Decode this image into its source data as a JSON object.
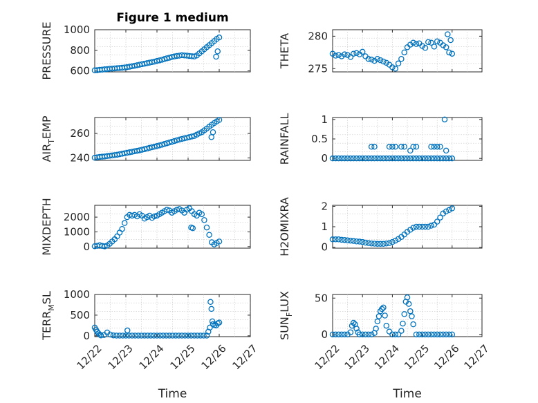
{
  "chart_data": [
    {
      "type": "scatter",
      "title": "Figure 1 medium",
      "ylabel": "PRESSURE",
      "ylabel_base": "",
      "ylabel_sub": "",
      "ylabel_rest": "",
      "ylim": [
        590,
        1000
      ],
      "yticks": [
        600,
        800,
        1000
      ],
      "xlim": [
        0,
        5
      ],
      "xticks": [
        0,
        1,
        2,
        3,
        4,
        5
      ],
      "xticklabels": [],
      "xlabel": "",
      "color": "#0072bd",
      "x": [
        0.0,
        0.08,
        0.16,
        0.24,
        0.32,
        0.4,
        0.48,
        0.56,
        0.64,
        0.72,
        0.8,
        0.88,
        0.96,
        1.04,
        1.12,
        1.2,
        1.28,
        1.36,
        1.44,
        1.52,
        1.6,
        1.68,
        1.76,
        1.84,
        1.92,
        2.0,
        2.08,
        2.16,
        2.24,
        2.32,
        2.4,
        2.48,
        2.56,
        2.64,
        2.72,
        2.8,
        2.88,
        2.96,
        3.04,
        3.12,
        3.2,
        3.28,
        3.36,
        3.44,
        3.52,
        3.6,
        3.68,
        3.76,
        3.84,
        3.92,
        4.0,
        3.9,
        3.95
      ],
      "y": [
        605,
        607,
        610,
        612,
        615,
        617,
        620,
        622,
        624,
        626,
        628,
        630,
        633,
        636,
        640,
        645,
        650,
        655,
        660,
        665,
        670,
        675,
        680,
        685,
        690,
        697,
        702,
        708,
        715,
        722,
        728,
        735,
        740,
        745,
        748,
        752,
        750,
        748,
        745,
        742,
        740,
        750,
        770,
        790,
        810,
        830,
        850,
        870,
        890,
        910,
        925,
        738,
        790
      ]
    },
    {
      "type": "scatter",
      "title": "",
      "ylabel": "THETA",
      "ylabel_base": "",
      "ylabel_sub": "",
      "ylabel_rest": "",
      "ylim": [
        274.5,
        281
      ],
      "yticks": [
        275,
        280
      ],
      "xlim": [
        0,
        5
      ],
      "xticks": [
        0,
        1,
        2,
        3,
        4,
        5
      ],
      "xticklabels": [],
      "xlabel": "",
      "color": "#0072bd",
      "x": [
        0.0,
        0.1,
        0.2,
        0.3,
        0.4,
        0.5,
        0.6,
        0.7,
        0.8,
        0.9,
        1.0,
        1.1,
        1.2,
        1.3,
        1.4,
        1.5,
        1.6,
        1.7,
        1.8,
        1.9,
        2.0,
        2.1,
        2.2,
        2.3,
        2.4,
        2.5,
        2.6,
        2.7,
        2.8,
        2.9,
        3.0,
        3.1,
        3.2,
        3.3,
        3.4,
        3.5,
        3.6,
        3.7,
        3.8,
        3.9,
        4.0,
        3.85,
        3.95
      ],
      "y": [
        277.3,
        277.0,
        277.1,
        276.9,
        277.2,
        277.1,
        276.8,
        277.3,
        277.4,
        277.2,
        277.6,
        276.9,
        276.5,
        276.4,
        276.2,
        276.5,
        276.3,
        276.1,
        275.9,
        275.6,
        275.2,
        275.0,
        275.8,
        276.5,
        277.5,
        278.3,
        278.7,
        279.0,
        278.8,
        278.9,
        278.5,
        278.2,
        279.1,
        279.0,
        278.4,
        279.2,
        279.0,
        278.6,
        278.3,
        277.5,
        277.3,
        280.3,
        279.4
      ]
    },
    {
      "type": "scatter",
      "title": "",
      "ylabel": "AIR_TEMP",
      "ylabel_base": "AIR",
      "ylabel_sub": "T",
      "ylabel_rest": "EMP",
      "ylim": [
        238,
        273
      ],
      "yticks": [
        240,
        260
      ],
      "xlim": [
        0,
        5
      ],
      "xticks": [
        0,
        1,
        2,
        3,
        4,
        5
      ],
      "xticklabels": [],
      "xlabel": "",
      "color": "#0072bd",
      "x": [
        0.0,
        0.08,
        0.16,
        0.24,
        0.32,
        0.4,
        0.48,
        0.56,
        0.64,
        0.72,
        0.8,
        0.88,
        0.96,
        1.04,
        1.12,
        1.2,
        1.28,
        1.36,
        1.44,
        1.52,
        1.6,
        1.68,
        1.76,
        1.84,
        1.92,
        2.0,
        2.08,
        2.16,
        2.24,
        2.32,
        2.4,
        2.48,
        2.56,
        2.64,
        2.72,
        2.8,
        2.88,
        2.96,
        3.04,
        3.12,
        3.2,
        3.28,
        3.36,
        3.44,
        3.52,
        3.6,
        3.68,
        3.76,
        3.84,
        3.92,
        4.0,
        3.75,
        3.8
      ],
      "y": [
        240.2,
        240.5,
        240.8,
        241.0,
        241.2,
        241.5,
        241.8,
        242.0,
        242.3,
        242.6,
        243.0,
        243.4,
        243.8,
        244.2,
        244.6,
        245.0,
        245.4,
        245.8,
        246.2,
        246.7,
        247.2,
        247.7,
        248.2,
        248.7,
        249.2,
        249.7,
        250.2,
        250.8,
        251.4,
        252.0,
        252.6,
        253.2,
        253.8,
        254.4,
        255.0,
        255.5,
        256.0,
        256.5,
        257.0,
        257.5,
        258.0,
        259.0,
        260.0,
        261.0,
        262.5,
        264.0,
        265.5,
        267.0,
        268.5,
        269.8,
        271.0,
        257.0,
        261.0
      ]
    },
    {
      "type": "scatter",
      "title": "",
      "ylabel": "RAINFALL",
      "ylabel_base": "",
      "ylabel_sub": "",
      "ylabel_rest": "",
      "ylim": [
        -0.05,
        1.05
      ],
      "yticks": [
        0,
        0.5,
        1
      ],
      "xlim": [
        0,
        5
      ],
      "xticks": [
        0,
        1,
        2,
        3,
        4,
        5
      ],
      "xticklabels": [],
      "xlabel": "",
      "color": "#0072bd",
      "x": [
        0.0,
        0.1,
        0.2,
        0.3,
        0.4,
        0.5,
        0.6,
        0.7,
        0.8,
        0.9,
        1.0,
        1.1,
        1.2,
        1.3,
        1.4,
        1.5,
        1.6,
        1.7,
        1.8,
        1.9,
        2.0,
        2.1,
        2.2,
        2.3,
        2.4,
        2.5,
        2.6,
        2.7,
        2.8,
        2.9,
        3.0,
        3.1,
        3.2,
        3.3,
        3.4,
        3.5,
        3.6,
        3.7,
        3.8,
        3.9,
        4.0,
        1.3,
        1.4,
        1.9,
        2.0,
        2.1,
        2.3,
        2.4,
        2.6,
        2.7,
        2.8,
        3.3,
        3.4,
        3.5,
        3.6,
        3.8,
        3.75
      ],
      "y": [
        0,
        0,
        0,
        0,
        0,
        0,
        0,
        0,
        0,
        0,
        0,
        0,
        0,
        0,
        0,
        0,
        0,
        0,
        0,
        0,
        0,
        0,
        0,
        0,
        0,
        0,
        0,
        0,
        0,
        0,
        0,
        0,
        0,
        0,
        0,
        0,
        0,
        0,
        0,
        0,
        0,
        0.3,
        0.3,
        0.3,
        0.3,
        0.3,
        0.3,
        0.3,
        0.2,
        0.3,
        0.3,
        0.3,
        0.3,
        0.3,
        0.3,
        0.2,
        1.0
      ]
    },
    {
      "type": "scatter",
      "title": "",
      "ylabel": "MIXDEPTH",
      "ylabel_base": "",
      "ylabel_sub": "",
      "ylabel_rest": "",
      "ylim": [
        -100,
        2800
      ],
      "yticks": [
        0,
        1000,
        2000
      ],
      "xlim": [
        0,
        5
      ],
      "xticks": [
        0,
        1,
        2,
        3,
        4,
        5
      ],
      "xticklabels": [],
      "xlabel": "",
      "color": "#0072bd",
      "x": [
        0.0,
        0.08,
        0.16,
        0.24,
        0.32,
        0.4,
        0.48,
        0.56,
        0.64,
        0.72,
        0.8,
        0.88,
        0.96,
        1.04,
        1.12,
        1.2,
        1.28,
        1.36,
        1.44,
        1.52,
        1.6,
        1.68,
        1.76,
        1.84,
        1.92,
        2.0,
        2.08,
        2.16,
        2.24,
        2.32,
        2.4,
        2.48,
        2.56,
        2.64,
        2.72,
        2.8,
        2.88,
        2.96,
        3.04,
        3.12,
        3.2,
        3.28,
        3.36,
        3.44,
        3.52,
        3.6,
        3.68,
        3.76,
        3.84,
        3.92,
        4.0,
        3.1,
        3.15
      ],
      "y": [
        30,
        60,
        100,
        50,
        20,
        80,
        200,
        350,
        500,
        700,
        950,
        1200,
        1600,
        2000,
        2150,
        2100,
        2150,
        2050,
        2200,
        2100,
        1900,
        2000,
        2100,
        1950,
        2050,
        2100,
        2200,
        2300,
        2400,
        2500,
        2450,
        2300,
        2400,
        2500,
        2550,
        2450,
        2300,
        2500,
        2600,
        2400,
        2200,
        2100,
        2300,
        2200,
        1800,
        1300,
        800,
        300,
        150,
        250,
        350,
        1300,
        1250
      ]
    },
    {
      "type": "scatter",
      "title": "",
      "ylabel": "H2OMIXRA",
      "ylabel_base": "",
      "ylabel_sub": "",
      "ylabel_rest": "",
      "ylim": [
        -0.05,
        2.05
      ],
      "yticks": [
        0,
        1,
        2
      ],
      "xlim": [
        0,
        5
      ],
      "xticks": [
        0,
        1,
        2,
        3,
        4,
        5
      ],
      "xticklabels": [],
      "xlabel": "",
      "color": "#0072bd",
      "x": [
        0.0,
        0.1,
        0.2,
        0.3,
        0.4,
        0.5,
        0.6,
        0.7,
        0.8,
        0.9,
        1.0,
        1.1,
        1.2,
        1.3,
        1.4,
        1.5,
        1.6,
        1.7,
        1.8,
        1.9,
        2.0,
        2.1,
        2.2,
        2.3,
        2.4,
        2.5,
        2.6,
        2.7,
        2.8,
        2.9,
        3.0,
        3.1,
        3.2,
        3.3,
        3.4,
        3.5,
        3.6,
        3.7,
        3.8,
        3.9,
        4.0
      ],
      "y": [
        0.38,
        0.38,
        0.38,
        0.36,
        0.35,
        0.33,
        0.32,
        0.3,
        0.28,
        0.27,
        0.25,
        0.22,
        0.2,
        0.18,
        0.17,
        0.16,
        0.16,
        0.16,
        0.18,
        0.2,
        0.25,
        0.32,
        0.4,
        0.5,
        0.62,
        0.75,
        0.85,
        0.95,
        1.0,
        1.0,
        1.0,
        1.0,
        1.0,
        1.05,
        1.1,
        1.25,
        1.45,
        1.65,
        1.75,
        1.82,
        1.9
      ]
    },
    {
      "type": "scatter",
      "title": "",
      "ylabel": "TERR_MSL",
      "ylabel_base": "TERR",
      "ylabel_sub": "M",
      "ylabel_rest": "SL",
      "ylim": [
        -20,
        1000
      ],
      "yticks": [
        0,
        500,
        1000
      ],
      "xlim": [
        0,
        5
      ],
      "xticks": [
        0,
        1,
        2,
        3,
        4,
        5
      ],
      "xticklabels": [
        "12/22",
        "12/23",
        "12/24",
        "12/25",
        "12/26",
        "12/27"
      ],
      "xlabel": "Time",
      "color": "#0072bd",
      "x": [
        0.0,
        0.04,
        0.08,
        0.12,
        0.16,
        0.2,
        0.3,
        0.4,
        0.5,
        0.6,
        0.7,
        0.8,
        0.9,
        1.0,
        1.05,
        1.1,
        1.2,
        1.3,
        1.4,
        1.5,
        1.6,
        1.7,
        1.8,
        1.9,
        2.0,
        2.1,
        2.2,
        2.3,
        2.4,
        2.5,
        2.6,
        2.7,
        2.8,
        2.9,
        3.0,
        3.1,
        3.2,
        3.3,
        3.4,
        3.5,
        3.6,
        3.65,
        3.7,
        3.72,
        3.75,
        3.78,
        3.8,
        3.85,
        3.9,
        3.95,
        4.0
      ],
      "y": [
        200,
        150,
        100,
        60,
        30,
        10,
        20,
        80,
        30,
        10,
        5,
        5,
        5,
        5,
        130,
        5,
        5,
        5,
        5,
        5,
        5,
        5,
        5,
        5,
        5,
        5,
        5,
        5,
        5,
        5,
        5,
        5,
        5,
        5,
        5,
        5,
        5,
        5,
        5,
        5,
        5,
        100,
        200,
        820,
        650,
        350,
        280,
        260,
        250,
        300,
        320
      ]
    },
    {
      "type": "scatter",
      "title": "",
      "ylabel": "SUN_FLUX",
      "ylabel_base": "SUN",
      "ylabel_sub": "F",
      "ylabel_rest": "LUX",
      "ylim": [
        -3,
        55
      ],
      "yticks": [
        0,
        50
      ],
      "xlim": [
        0,
        5
      ],
      "xticks": [
        0,
        1,
        2,
        3,
        4,
        5
      ],
      "xticklabels": [
        "12/22",
        "12/23",
        "12/24",
        "12/25",
        "12/26",
        "12/27"
      ],
      "xlabel": "Time",
      "color": "#0072bd",
      "x": [
        0.0,
        0.1,
        0.2,
        0.3,
        0.4,
        0.5,
        0.6,
        0.65,
        0.7,
        0.75,
        0.8,
        0.85,
        0.9,
        1.0,
        1.1,
        1.2,
        1.3,
        1.4,
        1.45,
        1.5,
        1.55,
        1.6,
        1.65,
        1.7,
        1.75,
        1.8,
        1.9,
        2.0,
        2.1,
        2.2,
        2.3,
        2.35,
        2.4,
        2.45,
        2.5,
        2.55,
        2.6,
        2.65,
        2.7,
        2.8,
        2.9,
        3.0,
        3.1,
        3.2,
        3.3,
        3.4,
        3.5,
        3.6,
        3.7,
        3.8,
        3.9,
        4.0
      ],
      "y": [
        0,
        0,
        0,
        0,
        0,
        0,
        3,
        12,
        16,
        14,
        8,
        3,
        0,
        0,
        0,
        0,
        0,
        2,
        8,
        18,
        25,
        32,
        35,
        37,
        26,
        12,
        4,
        0,
        0,
        0,
        5,
        15,
        28,
        45,
        51,
        42,
        32,
        25,
        14,
        0,
        0,
        0,
        0,
        0,
        0,
        0,
        0,
        0,
        0,
        0,
        0,
        0
      ]
    }
  ]
}
